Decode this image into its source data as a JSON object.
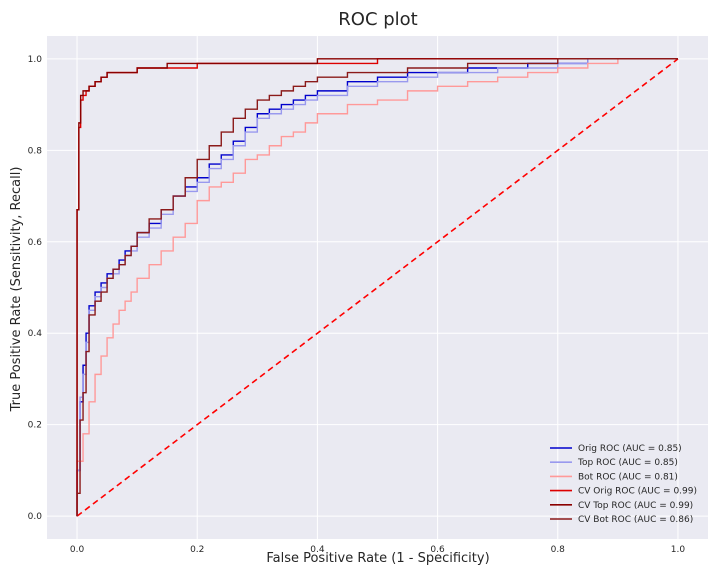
{
  "chart_data": {
    "type": "line",
    "title": "ROC plot",
    "xlabel": "False Positive Rate (1 - Specificity)",
    "ylabel": "True Positive Rate (Sensitivity, Recall)",
    "xlim": [
      -0.05,
      1.05
    ],
    "ylim": [
      -0.05,
      1.05
    ],
    "xticks": [
      "0.0",
      "0.2",
      "0.4",
      "0.6",
      "0.8",
      "1.0"
    ],
    "yticks": [
      "0.0",
      "0.2",
      "0.4",
      "0.6",
      "0.8",
      "1.0"
    ],
    "grid": true,
    "legend_position": "lower-right",
    "background": "#eaeaf2",
    "diagonal": {
      "x": [
        0,
        1
      ],
      "y": [
        0,
        1
      ],
      "color": "#ff0000",
      "style": "dashed"
    },
    "series": [
      {
        "name": "Orig ROC (AUC = 0.85)",
        "color": "#0000cc",
        "x": [
          0,
          0.005,
          0.01,
          0.015,
          0.02,
          0.03,
          0.04,
          0.05,
          0.06,
          0.07,
          0.08,
          0.09,
          0.1,
          0.12,
          0.14,
          0.16,
          0.18,
          0.2,
          0.22,
          0.24,
          0.26,
          0.28,
          0.3,
          0.32,
          0.34,
          0.36,
          0.38,
          0.4,
          0.45,
          0.5,
          0.55,
          0.6,
          0.65,
          0.7,
          0.75,
          0.8,
          0.85,
          0.9,
          1.0
        ],
        "y": [
          0,
          0.1,
          0.25,
          0.33,
          0.4,
          0.46,
          0.49,
          0.51,
          0.53,
          0.54,
          0.56,
          0.58,
          0.59,
          0.62,
          0.64,
          0.67,
          0.7,
          0.72,
          0.74,
          0.77,
          0.79,
          0.82,
          0.85,
          0.88,
          0.89,
          0.9,
          0.91,
          0.92,
          0.93,
          0.95,
          0.96,
          0.97,
          0.97,
          0.98,
          0.98,
          0.99,
          0.99,
          1.0,
          1.0
        ]
      },
      {
        "name": "Top ROC (AUC = 0.85)",
        "color": "#9999ee",
        "x": [
          0,
          0.005,
          0.01,
          0.015,
          0.02,
          0.03,
          0.04,
          0.05,
          0.06,
          0.07,
          0.08,
          0.09,
          0.1,
          0.12,
          0.14,
          0.16,
          0.18,
          0.2,
          0.22,
          0.24,
          0.26,
          0.28,
          0.3,
          0.32,
          0.34,
          0.36,
          0.38,
          0.4,
          0.45,
          0.5,
          0.55,
          0.6,
          0.65,
          0.7,
          0.75,
          0.8,
          0.85,
          0.9,
          1.0
        ],
        "y": [
          0,
          0.1,
          0.26,
          0.31,
          0.38,
          0.45,
          0.48,
          0.5,
          0.52,
          0.53,
          0.55,
          0.57,
          0.58,
          0.61,
          0.63,
          0.66,
          0.7,
          0.71,
          0.73,
          0.76,
          0.78,
          0.81,
          0.84,
          0.87,
          0.88,
          0.89,
          0.9,
          0.91,
          0.92,
          0.94,
          0.95,
          0.96,
          0.97,
          0.97,
          0.98,
          0.98,
          0.99,
          1.0,
          1.0
        ]
      },
      {
        "name": "Bot ROC (AUC = 0.81)",
        "color": "#ff9999",
        "x": [
          0,
          0.01,
          0.02,
          0.03,
          0.04,
          0.05,
          0.06,
          0.07,
          0.08,
          0.09,
          0.1,
          0.12,
          0.14,
          0.16,
          0.18,
          0.2,
          0.22,
          0.24,
          0.26,
          0.28,
          0.3,
          0.32,
          0.34,
          0.36,
          0.38,
          0.4,
          0.45,
          0.5,
          0.55,
          0.6,
          0.65,
          0.7,
          0.75,
          0.8,
          0.85,
          0.9,
          1.0
        ],
        "y": [
          0,
          0.12,
          0.18,
          0.25,
          0.31,
          0.35,
          0.39,
          0.42,
          0.45,
          0.47,
          0.49,
          0.52,
          0.55,
          0.58,
          0.61,
          0.64,
          0.69,
          0.72,
          0.73,
          0.75,
          0.78,
          0.79,
          0.81,
          0.83,
          0.84,
          0.86,
          0.88,
          0.9,
          0.91,
          0.93,
          0.94,
          0.95,
          0.96,
          0.97,
          0.98,
          0.99,
          1.0
        ]
      },
      {
        "name": "CV Orig ROC (AUC = 0.99)",
        "color": "#dd0000",
        "x": [
          0,
          0.003,
          0.006,
          0.01,
          0.015,
          0.02,
          0.03,
          0.04,
          0.05,
          0.06,
          0.08,
          0.1,
          0.12,
          0.15,
          0.2,
          0.25,
          0.3,
          0.4,
          0.5,
          0.6,
          0.7,
          0.8,
          0.9,
          1.0
        ],
        "y": [
          0,
          0.67,
          0.85,
          0.91,
          0.92,
          0.93,
          0.94,
          0.95,
          0.96,
          0.97,
          0.97,
          0.97,
          0.98,
          0.98,
          0.98,
          0.99,
          0.99,
          0.99,
          0.99,
          1.0,
          1.0,
          1.0,
          1.0,
          1.0
        ]
      },
      {
        "name": "CV Top ROC (AUC = 0.99)",
        "color": "#8b0000",
        "x": [
          0,
          0.003,
          0.006,
          0.01,
          0.015,
          0.02,
          0.03,
          0.04,
          0.05,
          0.06,
          0.08,
          0.1,
          0.12,
          0.15,
          0.2,
          0.25,
          0.3,
          0.4,
          0.5,
          0.6,
          0.7,
          0.8,
          0.9,
          1.0
        ],
        "y": [
          0,
          0.67,
          0.86,
          0.92,
          0.93,
          0.93,
          0.94,
          0.95,
          0.96,
          0.97,
          0.97,
          0.97,
          0.98,
          0.98,
          0.99,
          0.99,
          0.99,
          0.99,
          1.0,
          1.0,
          1.0,
          1.0,
          1.0,
          1.0
        ]
      },
      {
        "name": "CV Bot ROC (AUC = 0.86)",
        "color": "#8b1a1a",
        "x": [
          0,
          0.005,
          0.01,
          0.015,
          0.02,
          0.03,
          0.04,
          0.05,
          0.06,
          0.07,
          0.08,
          0.09,
          0.1,
          0.12,
          0.14,
          0.16,
          0.18,
          0.2,
          0.22,
          0.24,
          0.26,
          0.28,
          0.3,
          0.32,
          0.34,
          0.36,
          0.38,
          0.4,
          0.45,
          0.5,
          0.55,
          0.6,
          0.65,
          0.7,
          0.75,
          0.8,
          0.85,
          0.9,
          1.0
        ],
        "y": [
          0,
          0.05,
          0.21,
          0.27,
          0.36,
          0.44,
          0.47,
          0.49,
          0.52,
          0.54,
          0.55,
          0.57,
          0.59,
          0.62,
          0.65,
          0.67,
          0.7,
          0.74,
          0.78,
          0.81,
          0.84,
          0.87,
          0.89,
          0.91,
          0.92,
          0.93,
          0.94,
          0.95,
          0.96,
          0.97,
          0.97,
          0.98,
          0.98,
          0.99,
          0.99,
          0.99,
          1.0,
          1.0,
          1.0
        ]
      }
    ]
  }
}
